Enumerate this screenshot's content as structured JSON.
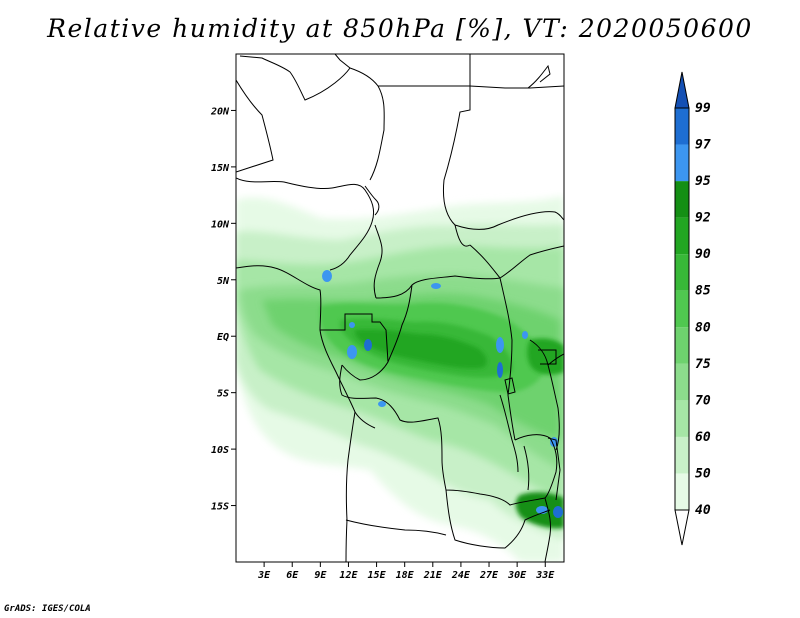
{
  "title": "Relative humidity at 850hPa [%], VT: 2020050600",
  "credit": "GrADS: IGES/COLA",
  "map": {
    "lat_ticks": [
      "20N",
      "15N",
      "10N",
      "5N",
      "EQ",
      "5S",
      "10S",
      "15S"
    ],
    "lat_values": [
      20,
      15,
      10,
      5,
      0,
      -5,
      -10,
      -15
    ],
    "lon_ticks": [
      "3E",
      "6E",
      "9E",
      "12E",
      "15E",
      "18E",
      "21E",
      "24E",
      "27E",
      "30E",
      "33E"
    ],
    "lon_values": [
      3,
      6,
      9,
      12,
      15,
      18,
      21,
      24,
      27,
      30,
      33
    ],
    "lon_range": [
      0,
      35
    ],
    "lat_range": [
      -20,
      25
    ]
  },
  "colorbar": {
    "levels": [
      "40",
      "50",
      "60",
      "70",
      "75",
      "80",
      "85",
      "90",
      "92",
      "95",
      "97",
      "99"
    ],
    "colors": [
      "#ffffff",
      "#e6fae6",
      "#c8f0c8",
      "#a6e6a6",
      "#8cdc8c",
      "#6ed26e",
      "#50c850",
      "#38b838",
      "#22a622",
      "#148f14",
      "#3c96f0",
      "#1e6ed2",
      "#1450b4"
    ]
  }
}
